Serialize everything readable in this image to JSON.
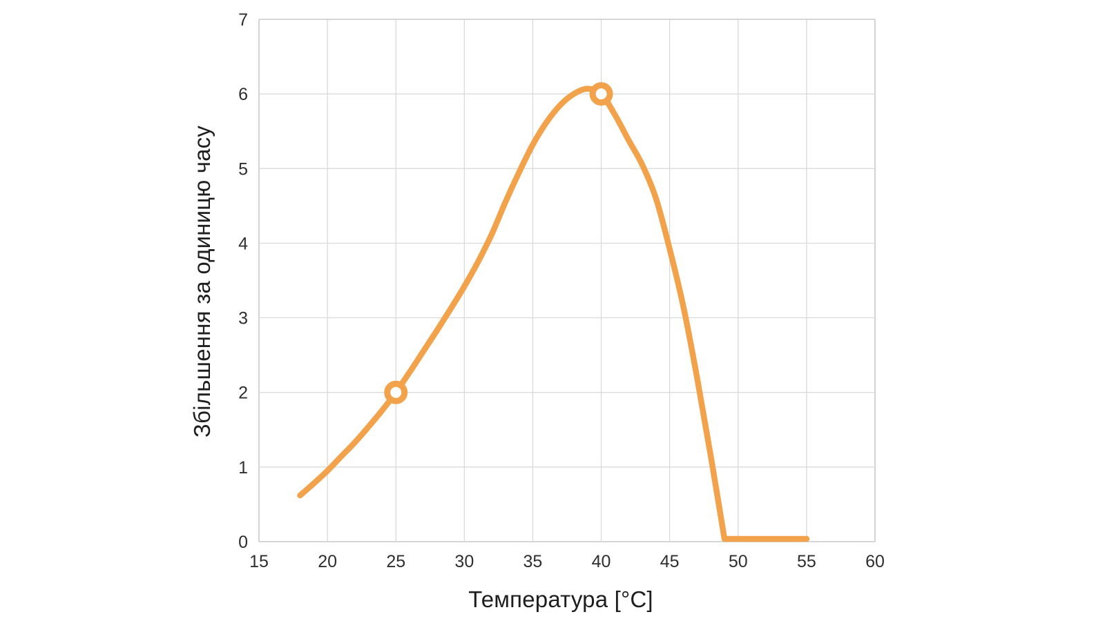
{
  "chart_data": {
    "type": "line",
    "title": "",
    "xlabel": "Температура [°C]",
    "ylabel": "Збільшення за одиницю часу",
    "xlim": [
      15,
      60
    ],
    "ylim": [
      0,
      7
    ],
    "x_ticks": [
      15,
      20,
      25,
      30,
      35,
      40,
      45,
      50,
      55,
      60
    ],
    "y_ticks": [
      0,
      1,
      2,
      3,
      4,
      5,
      6,
      7
    ],
    "grid": true,
    "legend": false,
    "series": [
      {
        "name": "growth-rate-vs-temperature",
        "color": "#F2A24A",
        "points": [
          [
            18,
            0.62
          ],
          [
            19,
            0.78
          ],
          [
            20,
            0.95
          ],
          [
            21,
            1.14
          ],
          [
            22,
            1.33
          ],
          [
            23,
            1.54
          ],
          [
            24,
            1.76
          ],
          [
            25,
            2.0
          ],
          [
            26,
            2.27
          ],
          [
            27,
            2.55
          ],
          [
            28,
            2.83
          ],
          [
            29,
            3.12
          ],
          [
            30,
            3.42
          ],
          [
            31,
            3.75
          ],
          [
            32,
            4.12
          ],
          [
            33,
            4.55
          ],
          [
            34,
            4.95
          ],
          [
            35,
            5.32
          ],
          [
            36,
            5.62
          ],
          [
            37,
            5.85
          ],
          [
            38,
            6.0
          ],
          [
            39,
            6.07
          ],
          [
            40,
            6.0
          ],
          [
            41,
            5.72
          ],
          [
            42,
            5.38
          ],
          [
            43,
            5.05
          ],
          [
            44,
            4.6
          ],
          [
            45,
            3.92
          ],
          [
            46,
            3.15
          ],
          [
            47,
            2.2
          ],
          [
            48,
            1.15
          ],
          [
            49,
            0
          ]
        ],
        "flat_segment_end": [
          55,
          0
        ],
        "markers": [
          [
            25,
            2
          ],
          [
            40,
            6
          ]
        ]
      }
    ],
    "colors": {
      "curve": "#F2A24A",
      "marker_fill": "#FFFFFF",
      "grid": "#D7D7D7",
      "axis_border": "#C9C9C9",
      "tick_text": "#2E2E2E",
      "title_text": "#1E1E1E",
      "background": "#FFFFFF"
    }
  }
}
